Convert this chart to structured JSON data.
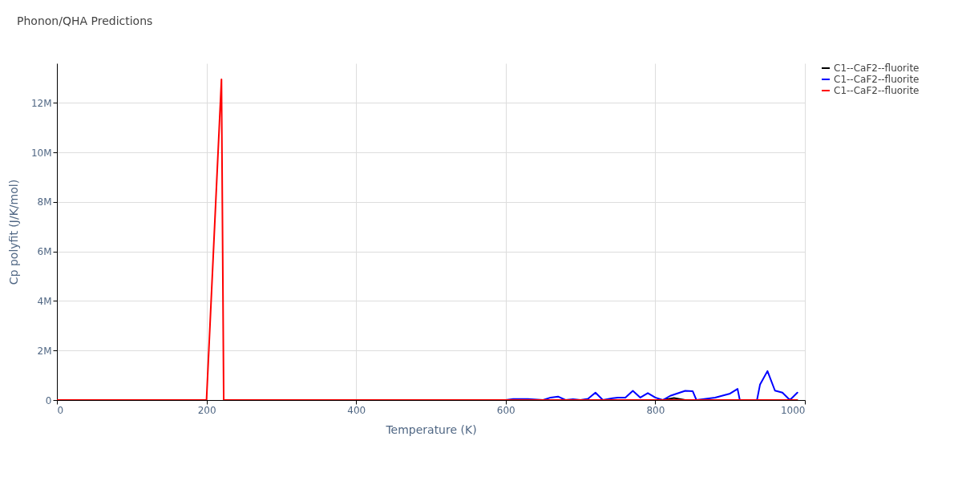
{
  "chart_data": {
    "type": "line",
    "title": "Phonon/QHA Predictions",
    "xlabel": "Temperature (K)",
    "ylabel": "Cp polyfit (J/K/mol)",
    "xlim": [
      0,
      1000
    ],
    "xticks": [
      0,
      200,
      400,
      600,
      800,
      1000
    ],
    "ylim": [
      0,
      13600000
    ],
    "yticks": [
      0,
      {
        "value": 2000000,
        "label": "2M"
      },
      {
        "value": 4000000,
        "label": "4M"
      },
      {
        "value": 6000000,
        "label": "6M"
      },
      {
        "value": 8000000,
        "label": "8M"
      },
      {
        "value": 10000000,
        "label": "10M"
      },
      {
        "value": 12000000,
        "label": "12M"
      }
    ],
    "grid": true,
    "legend": "top right",
    "line_style": "solid",
    "series": [
      {
        "name": "C1--CaF2--fluorite",
        "color": "#000000",
        "x": [
          810,
          825,
          840
        ],
        "values": [
          0,
          80000,
          0
        ]
      },
      {
        "name": "C1--CaF2--fluorite",
        "color": "#0000ff",
        "x": [
          600,
          610,
          630,
          650,
          660,
          670,
          680,
          690,
          700,
          710,
          720,
          730,
          740,
          750,
          760,
          770,
          780,
          790,
          800,
          810,
          820,
          840,
          850,
          855,
          880,
          900,
          910,
          913,
          936,
          940,
          950,
          960,
          970,
          980,
          990
        ],
        "values": [
          0,
          40000,
          40000,
          0,
          100000,
          140000,
          0,
          30000,
          0,
          50000,
          300000,
          0,
          60000,
          100000,
          100000,
          370000,
          100000,
          280000,
          100000,
          0,
          170000,
          370000,
          360000,
          0,
          100000,
          260000,
          450000,
          0,
          0,
          620000,
          1170000,
          380000,
          300000,
          0,
          300000
        ]
      },
      {
        "name": "C1--CaF2--fluorite",
        "color": "#ff0000",
        "x": [
          0,
          200,
          220,
          223,
          990
        ],
        "values": [
          0,
          0,
          12950000,
          0,
          0
        ]
      }
    ]
  }
}
